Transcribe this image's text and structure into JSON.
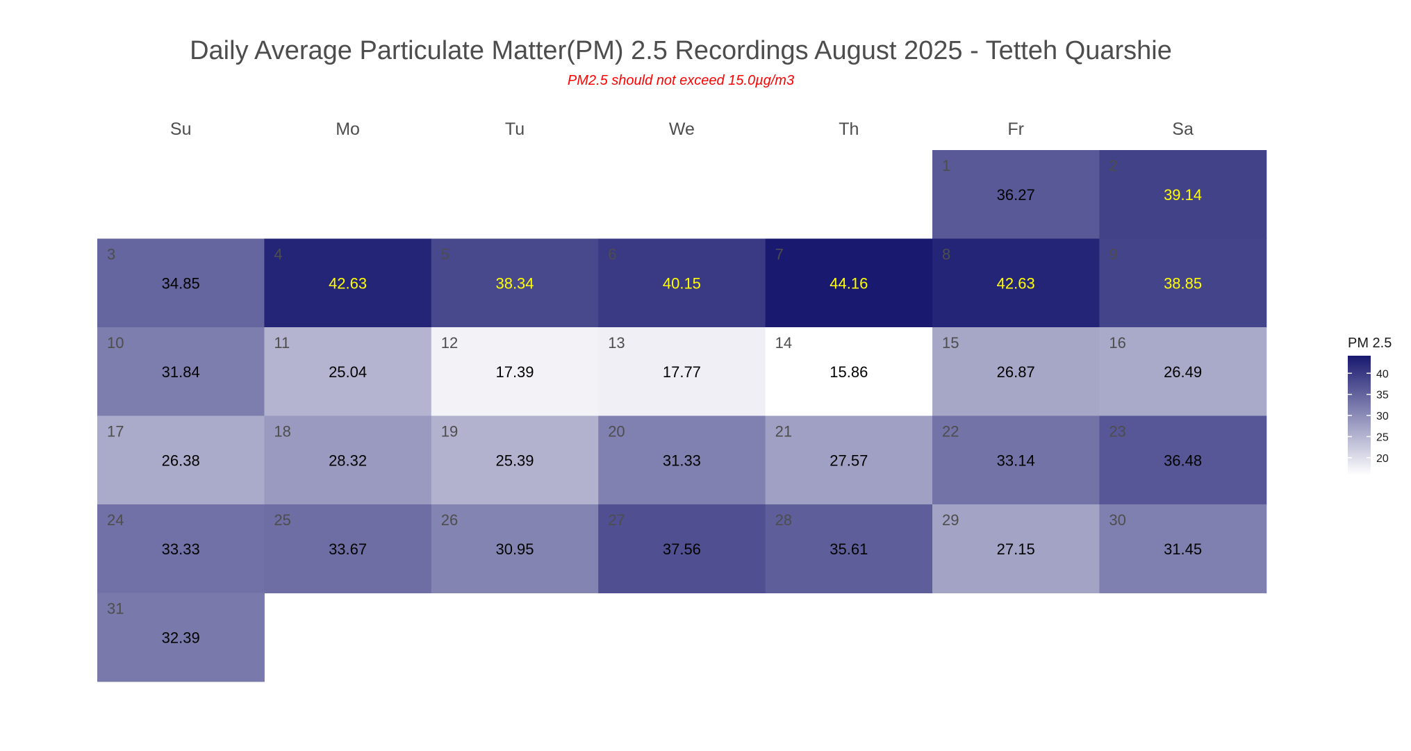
{
  "title": "Daily Average Particulate Matter(PM) 2.5 Recordings August 2025 -  Tetteh Quarshie",
  "subtitle": "PM2.5 should not exceed 15.0µg/m3",
  "colors": {
    "low": "#ffffff",
    "high": "#191970",
    "day_label": "#4d4d4d",
    "value_dark": "#000000",
    "value_highlight": "#ffff00",
    "title": "#4d4d4d",
    "subtitle": "#ff0000"
  },
  "chart_data": {
    "type": "heatmap",
    "title": "Daily Average Particulate Matter(PM) 2.5 Recordings August 2025 -  Tetteh Quarshie",
    "subtitle": "PM2.5 should not exceed 15.0µg/m3",
    "weekdays": [
      "Su",
      "Mo",
      "Tu",
      "We",
      "Th",
      "Fr",
      "Sa"
    ],
    "first_weekday_index": 5,
    "days": [
      {
        "day": 1,
        "value": 36.27
      },
      {
        "day": 2,
        "value": 39.14
      },
      {
        "day": 3,
        "value": 34.85
      },
      {
        "day": 4,
        "value": 42.63
      },
      {
        "day": 5,
        "value": 38.34
      },
      {
        "day": 6,
        "value": 40.15
      },
      {
        "day": 7,
        "value": 44.16
      },
      {
        "day": 8,
        "value": 42.63
      },
      {
        "day": 9,
        "value": 38.85
      },
      {
        "day": 10,
        "value": 31.84
      },
      {
        "day": 11,
        "value": 25.04
      },
      {
        "day": 12,
        "value": 17.39
      },
      {
        "day": 13,
        "value": 17.77
      },
      {
        "day": 14,
        "value": 15.86
      },
      {
        "day": 15,
        "value": 26.87
      },
      {
        "day": 16,
        "value": 26.49
      },
      {
        "day": 17,
        "value": 26.38
      },
      {
        "day": 18,
        "value": 28.32
      },
      {
        "day": 19,
        "value": 25.39
      },
      {
        "day": 20,
        "value": 31.33
      },
      {
        "day": 21,
        "value": 27.57
      },
      {
        "day": 22,
        "value": 33.14
      },
      {
        "day": 23,
        "value": 36.48
      },
      {
        "day": 24,
        "value": 33.33
      },
      {
        "day": 25,
        "value": 33.67
      },
      {
        "day": 26,
        "value": 30.95
      },
      {
        "day": 27,
        "value": 37.56
      },
      {
        "day": 28,
        "value": 35.61
      },
      {
        "day": 29,
        "value": 27.15
      },
      {
        "day": 30,
        "value": 31.45
      },
      {
        "day": 31,
        "value": 32.39
      }
    ],
    "value_highlight_threshold": 38.0,
    "legend": {
      "title": "PM 2.5",
      "ticks": [
        20,
        25,
        30,
        35,
        40
      ],
      "range": [
        15.86,
        44.16
      ],
      "position": "right"
    }
  }
}
